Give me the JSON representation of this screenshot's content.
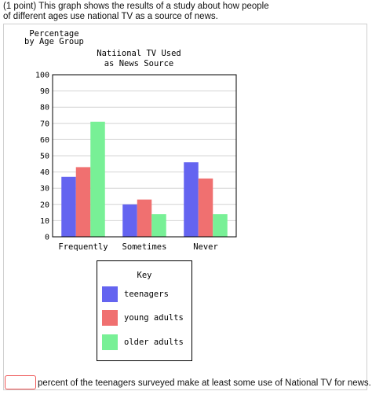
{
  "question": {
    "prompt": "(1 point) This graph shows the results of a study about how people of different ages use national TV as a source of news.",
    "answer_value": "",
    "answer_suffix": "percent of the teenagers surveyed make at least some use of National TV for news."
  },
  "chart_data": {
    "type": "bar",
    "title_line1": "Natiional TV Used",
    "title_line2": "as News Source",
    "ylabel_line1": "Percentage",
    "ylabel_line2": "by Age Group",
    "categories": [
      "Frequently",
      "Sometimes",
      "Never"
    ],
    "ylim": [
      0,
      100
    ],
    "yticks": [
      0,
      10,
      20,
      30,
      40,
      50,
      60,
      70,
      80,
      90,
      100
    ],
    "grid": true,
    "series": [
      {
        "name": "teenagers",
        "color": "#6464f0",
        "values": [
          37,
          20,
          46
        ]
      },
      {
        "name": "young adults",
        "color": "#f07070",
        "values": [
          43,
          23,
          36
        ]
      },
      {
        "name": "older adults",
        "color": "#78f096",
        "values": [
          71,
          14,
          14
        ]
      }
    ],
    "legend_title": "Key",
    "legend_position": "bottom"
  }
}
